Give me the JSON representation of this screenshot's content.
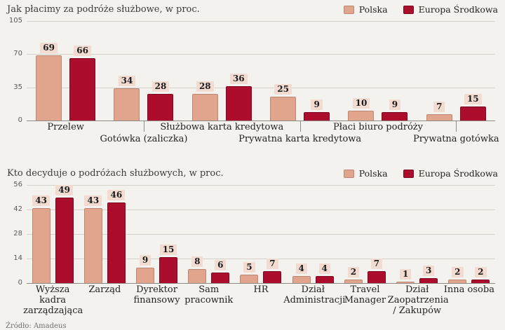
{
  "source": "Źródło: Amadeus",
  "colors": {
    "polska": "#e1a58d",
    "polska_border": "#bd8774",
    "europa": "#ad0d2d",
    "europa_border": "#7c0920",
    "label_bg": "#f2dcd2"
  },
  "chart_data": [
    {
      "type": "bar",
      "title": "Jak płacimy za podróże służbowe, w  proc.",
      "categories": [
        "Przelew",
        "Gotówka (zaliczka)",
        "Służbowa karta kredytowa",
        "Prywatna karta kredytowa",
        "Płaci biuro podróży",
        "Prywatna gotówka"
      ],
      "series": [
        {
          "name": "Polska",
          "values": [
            69,
            34,
            28,
            25,
            10,
            7
          ]
        },
        {
          "name": "Europa Środkowa",
          "values": [
            66,
            28,
            36,
            9,
            9,
            15
          ]
        }
      ],
      "ylim": [
        0,
        105
      ],
      "yticks": [
        0,
        35,
        70,
        105
      ],
      "grid": true,
      "legend_position": "top-right",
      "label_rows": [
        0,
        1,
        0,
        1,
        0,
        1
      ]
    },
    {
      "type": "bar",
      "title": "Kto decyduje o podróżach służbowych, w proc.",
      "categories": [
        "Wyższa kadra zarządzająca",
        "Zarząd",
        "Dyrektor finansowy",
        "Sam pracownik",
        "HR",
        "Dział Administracji",
        "Travel Manager",
        "Dział Zaopatrzenia / Zakupów",
        "Inna osoba"
      ],
      "series": [
        {
          "name": "Polska",
          "values": [
            43,
            43,
            9,
            8,
            5,
            4,
            2,
            1,
            2
          ]
        },
        {
          "name": "Europa Środkowa",
          "values": [
            49,
            46,
            15,
            6,
            7,
            4,
            7,
            3,
            2
          ]
        }
      ],
      "ylim": [
        0,
        56
      ],
      "yticks": [
        0,
        14,
        28,
        42,
        56
      ],
      "grid": true,
      "legend_position": "top-right",
      "label_rows": [
        0,
        0,
        0,
        0,
        0,
        0,
        0,
        0,
        0
      ]
    }
  ]
}
